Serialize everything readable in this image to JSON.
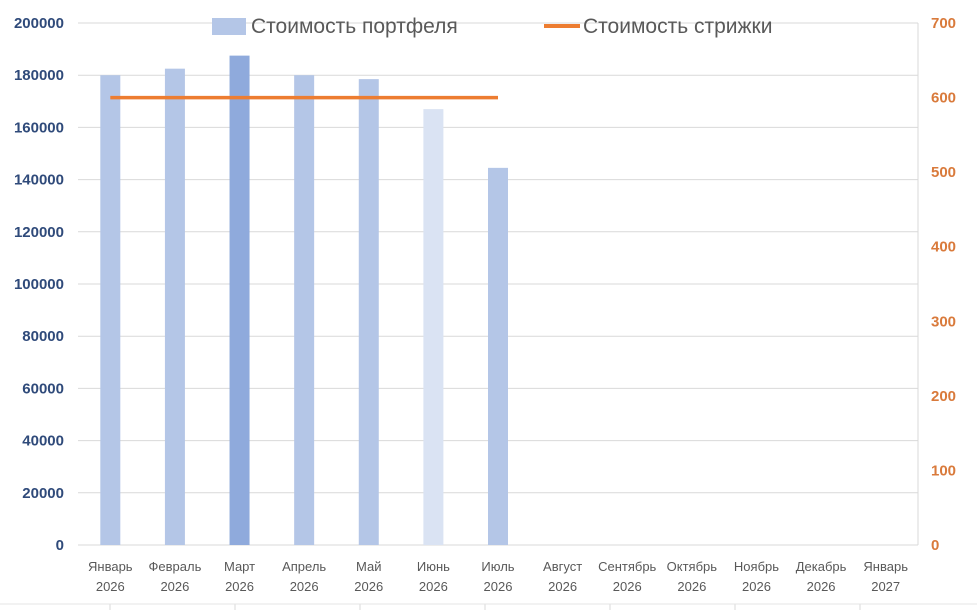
{
  "chart_data": {
    "type": "bar",
    "categories": [
      "Январь 2026",
      "Февраль 2026",
      "Март 2026",
      "Апрель 2026",
      "Май 2026",
      "Июнь 2026",
      "Июль 2026",
      "Август 2026",
      "Сентябрь 2026",
      "Октябрь 2026",
      "Ноябрь 2026",
      "Декабрь 2026",
      "Январь 2027"
    ],
    "series": [
      {
        "name": "Стоимость портфеля",
        "type": "bar",
        "axis": "left",
        "values": [
          180000,
          182500,
          187500,
          180000,
          178500,
          167000,
          144500,
          null,
          null,
          null,
          null,
          null,
          null
        ],
        "colors": [
          "#b4c6e7",
          "#b4c6e7",
          "#8faadc",
          "#b4c6e7",
          "#b4c6e7",
          "#dae3f3",
          "#b4c6e7",
          null,
          null,
          null,
          null,
          null,
          null
        ]
      },
      {
        "name": "Стоимость стрижки",
        "type": "line",
        "axis": "right",
        "values": [
          600,
          600,
          600,
          600,
          600,
          600,
          600,
          null,
          null,
          null,
          null,
          null,
          null
        ],
        "color": "#ed7d31"
      }
    ],
    "ylim_left": [
      0,
      200000
    ],
    "yticks_left": [
      "0",
      "20000",
      "40000",
      "60000",
      "80000",
      "100000",
      "120000",
      "140000",
      "160000",
      "180000",
      "200000"
    ],
    "ylim_right": [
      0,
      700
    ],
    "yticks_right": [
      "0",
      "100",
      "200",
      "300",
      "400",
      "500",
      "600",
      "700"
    ],
    "legend_position": "top",
    "grid": true,
    "title": "",
    "xlabel": "",
    "ylabel": "",
    "colors": {
      "left_axis": "#2f4a7a",
      "right_axis": "#d97a3b",
      "grid": "#d9d9d9",
      "xtick": "#595959",
      "legend_text": "#595959"
    }
  }
}
